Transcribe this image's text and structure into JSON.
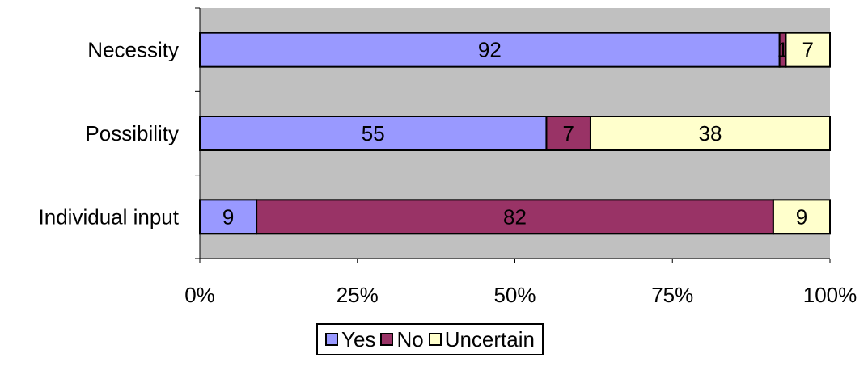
{
  "chart_data": {
    "type": "bar",
    "orientation": "horizontal",
    "stacked": "percent",
    "categories": [
      "Necessity",
      "Possibility",
      "Individual input"
    ],
    "series": [
      {
        "name": "Yes",
        "color": "#9999ff",
        "values": [
          92,
          55,
          9
        ]
      },
      {
        "name": "No",
        "color": "#993366",
        "values": [
          1,
          7,
          82
        ]
      },
      {
        "name": "Uncertain",
        "color": "#ffffcc",
        "values": [
          7,
          38,
          9
        ]
      }
    ],
    "xlim": [
      0,
      100
    ],
    "xticks": [
      "0%",
      "25%",
      "50%",
      "75%",
      "100%"
    ],
    "grid": false,
    "plot_background": "#c0c0c0",
    "legend_position": "bottom"
  }
}
